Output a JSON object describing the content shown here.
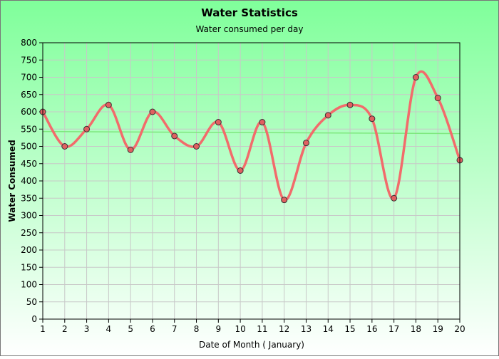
{
  "chart_data": {
    "type": "line",
    "title": "Water Statistics",
    "subtitle": "Water consumed per day",
    "xlabel": "Date of Month ( January)",
    "ylabel": "Water Consumed",
    "x": [
      1,
      2,
      3,
      4,
      5,
      6,
      7,
      8,
      9,
      10,
      11,
      12,
      13,
      14,
      15,
      16,
      17,
      18,
      19,
      20
    ],
    "series": [
      {
        "values": [
          600,
          500,
          550,
          620,
          490,
          600,
          530,
          500,
          570,
          430,
          570,
          345,
          510,
          590,
          620,
          580,
          350,
          700,
          640,
          460
        ],
        "line_color": "#f26b6b",
        "marker_color": "#e06060"
      }
    ],
    "trend_line": {
      "y_start": 543,
      "y_end": 537,
      "color": "#7de87d"
    },
    "ylim": [
      0,
      800
    ],
    "ytick_step": 50,
    "grid": true,
    "legend": "none",
    "background_top": "#7fff9a",
    "background_bottom": "#ffffff"
  }
}
